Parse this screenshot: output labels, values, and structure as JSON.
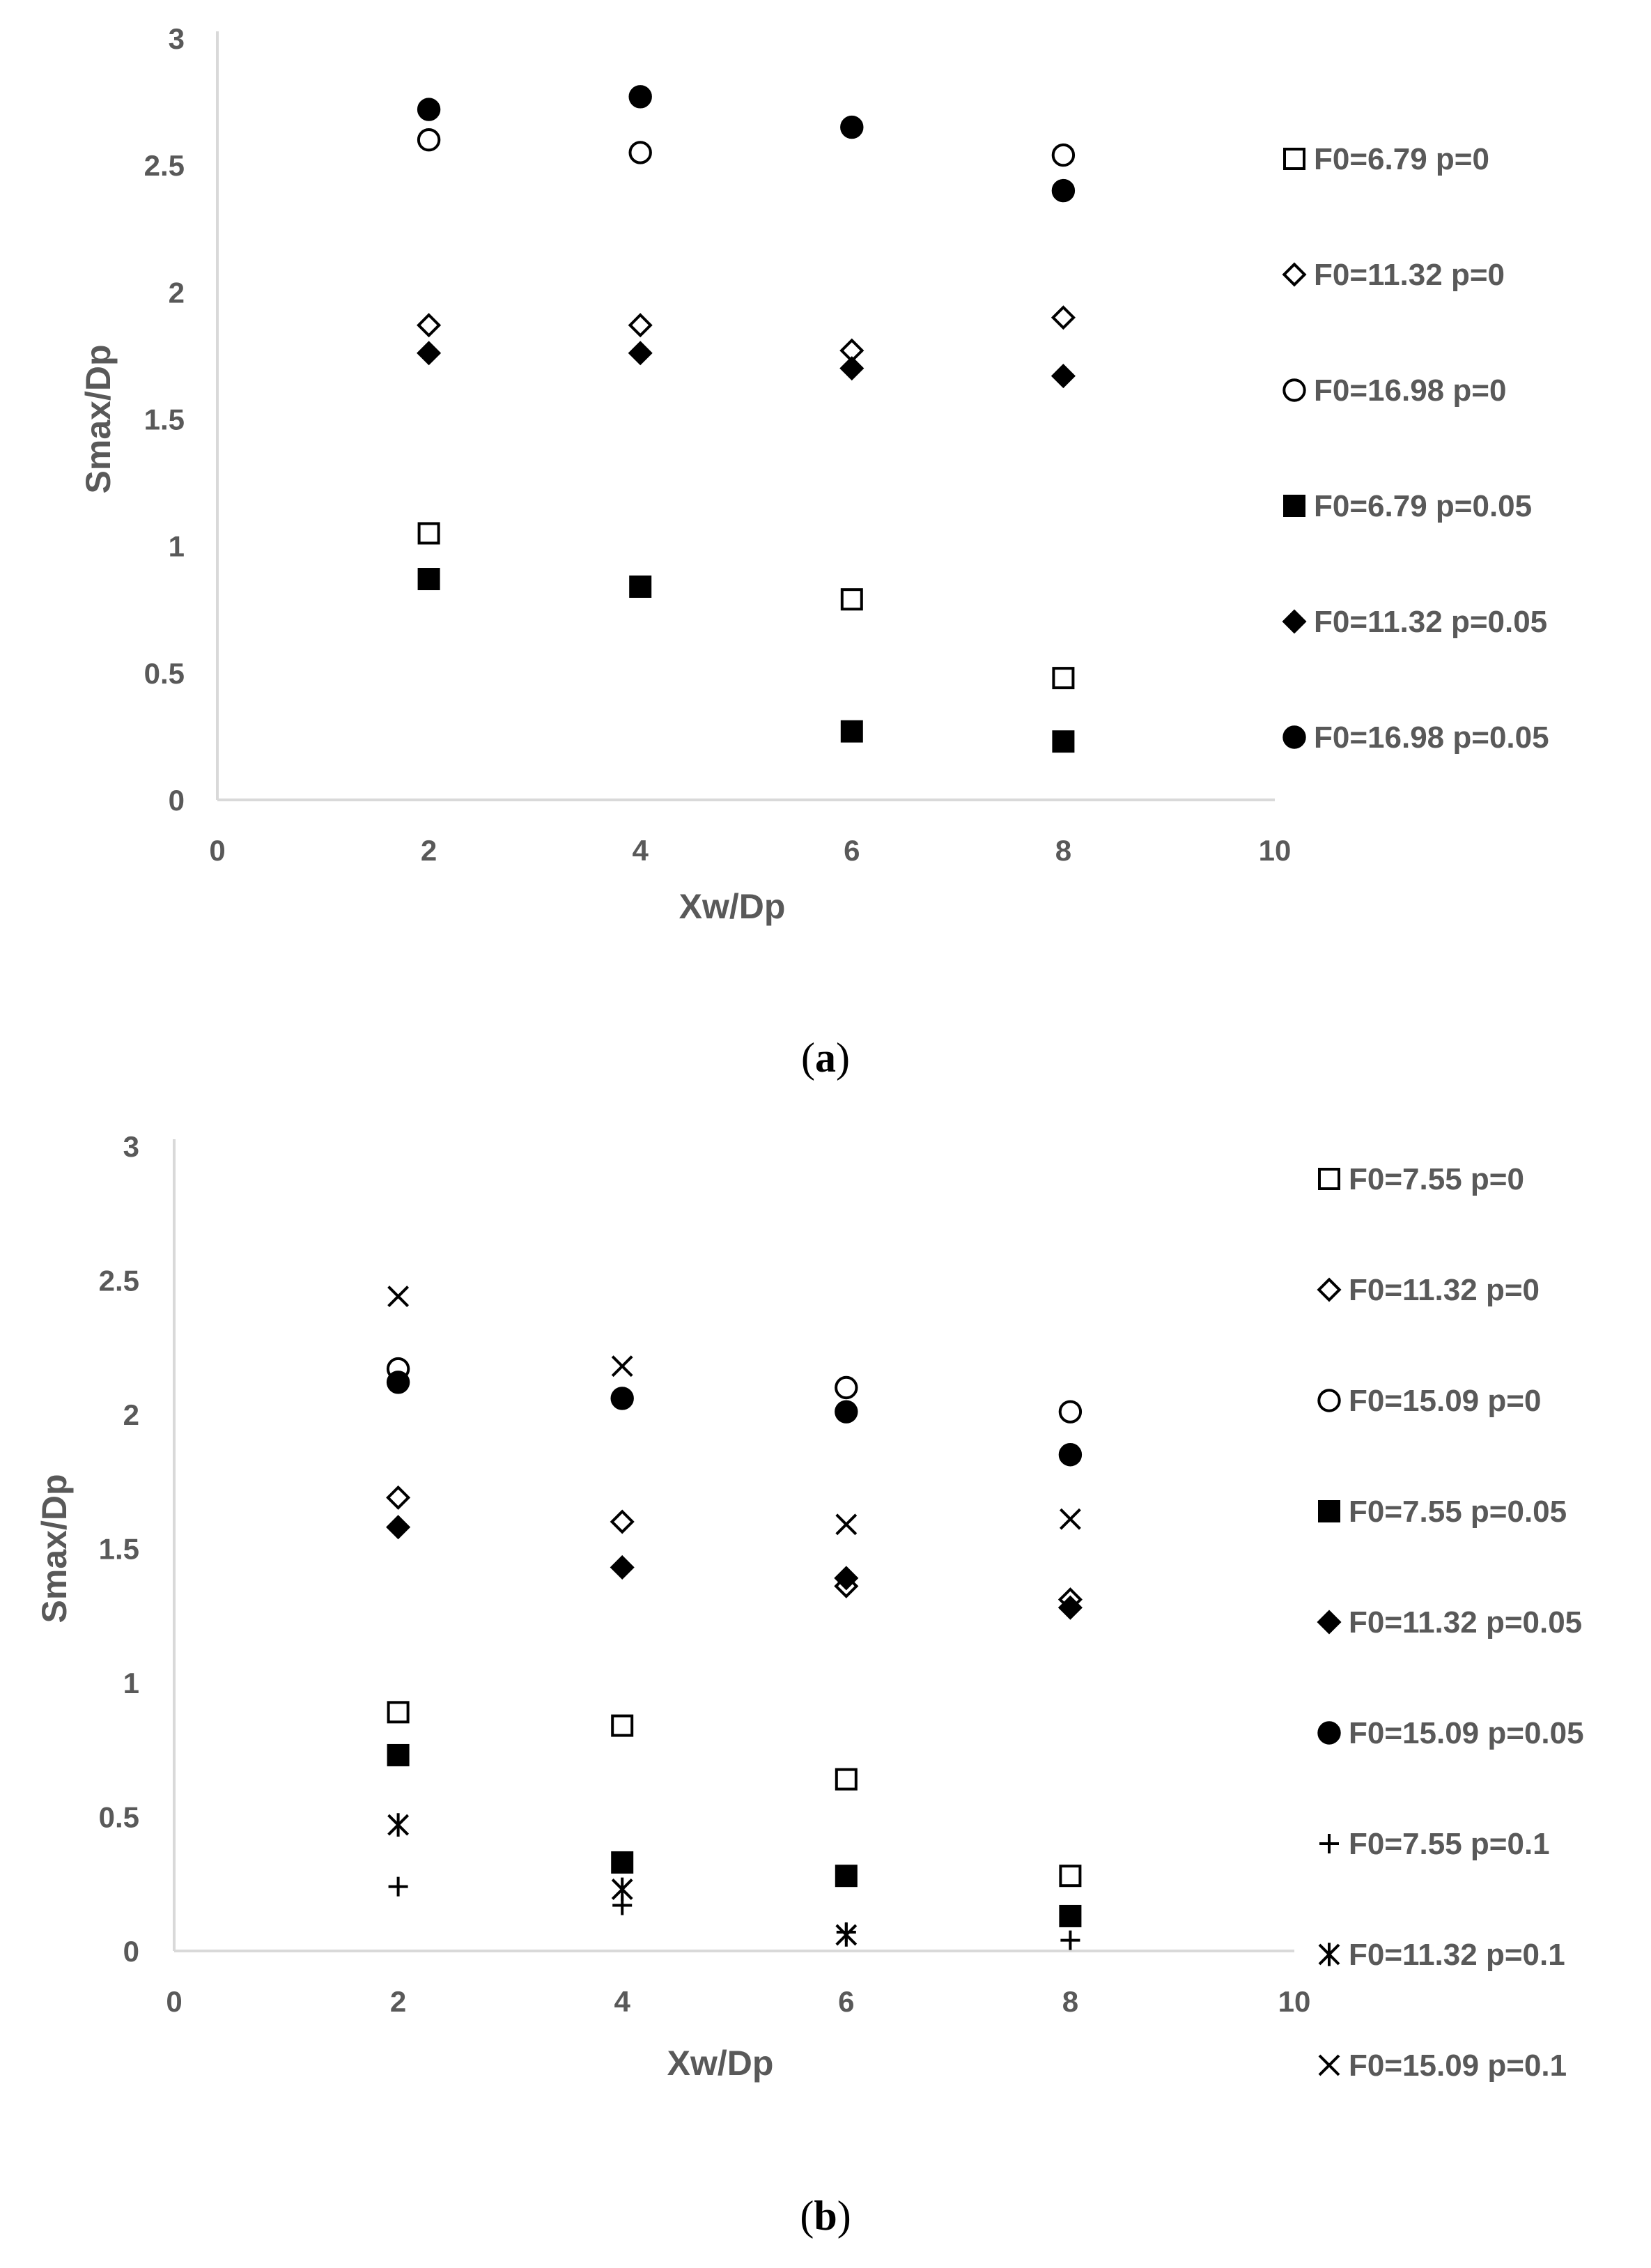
{
  "chart_data": [
    {
      "type": "scatter",
      "panel": "a",
      "caption": "(a)",
      "caption_letter": "a",
      "xlabel": "Xw/Dp",
      "ylabel": "Smax/Dp",
      "xlim": [
        0,
        10
      ],
      "ylim": [
        0,
        3
      ],
      "xticks": [
        "0",
        "2",
        "4",
        "6",
        "8",
        "10"
      ],
      "yticks": [
        "0",
        "0.5",
        "1",
        "1.5",
        "2",
        "2.5",
        "3"
      ],
      "legend_position": "right",
      "series": [
        {
          "name": "F0=6.79 p=0",
          "marker": "square-open",
          "x": [
            2,
            6,
            8
          ],
          "y": [
            1.05,
            0.79,
            0.48
          ]
        },
        {
          "name": "F0=11.32 p=0",
          "marker": "diamond-open",
          "x": [
            2,
            4,
            6,
            8
          ],
          "y": [
            1.87,
            1.87,
            1.77,
            1.9
          ]
        },
        {
          "name": "F0=16.98 p=0",
          "marker": "circle-open",
          "x": [
            2,
            4,
            8
          ],
          "y": [
            2.6,
            2.55,
            2.54
          ]
        },
        {
          "name": "F0=6.79 p=0.05",
          "marker": "square-filled",
          "x": [
            2,
            4,
            6,
            8
          ],
          "y": [
            0.87,
            0.84,
            0.27,
            0.23
          ]
        },
        {
          "name": "F0=11.32 p=0.05",
          "marker": "diamond-filled",
          "x": [
            2,
            4,
            6,
            8
          ],
          "y": [
            1.76,
            1.76,
            1.7,
            1.67
          ]
        },
        {
          "name": "F0=16.98 p=0.05",
          "marker": "circle-filled",
          "x": [
            2,
            4,
            6,
            8
          ],
          "y": [
            2.72,
            2.77,
            2.65,
            2.4
          ]
        }
      ]
    },
    {
      "type": "scatter",
      "panel": "b",
      "caption": "(b)",
      "caption_letter": "b",
      "xlabel": "Xw/Dp",
      "ylabel": "Smax/Dp",
      "xlim": [
        0,
        10
      ],
      "ylim": [
        0,
        3
      ],
      "xticks": [
        "0",
        "2",
        "4",
        "6",
        "8",
        "10"
      ],
      "yticks": [
        "0",
        "0.5",
        "1",
        "1.5",
        "2",
        "2.5",
        "3"
      ],
      "legend_position": "right",
      "series": [
        {
          "name": "F0=7.55 p=0",
          "marker": "square-open",
          "x": [
            2,
            4,
            6,
            8
          ],
          "y": [
            0.89,
            0.84,
            0.64,
            0.28
          ]
        },
        {
          "name": "F0=11.32 p=0",
          "marker": "diamond-open",
          "x": [
            2,
            4,
            6,
            8
          ],
          "y": [
            1.69,
            1.6,
            1.36,
            1.31
          ]
        },
        {
          "name": "F0=15.09 p=0",
          "marker": "circle-open",
          "x": [
            2,
            6,
            8
          ],
          "y": [
            2.17,
            2.1,
            2.01
          ]
        },
        {
          "name": "F0=7.55 p=0.05",
          "marker": "square-filled",
          "x": [
            2,
            4,
            6,
            8
          ],
          "y": [
            0.73,
            0.33,
            0.28,
            0.13
          ]
        },
        {
          "name": "F0=11.32 p=0.05",
          "marker": "diamond-filled",
          "x": [
            2,
            4,
            6,
            8
          ],
          "y": [
            1.58,
            1.43,
            1.39,
            1.28
          ]
        },
        {
          "name": "F0=15.09 p=0.05",
          "marker": "circle-filled",
          "x": [
            2,
            4,
            6,
            8
          ],
          "y": [
            2.12,
            2.06,
            2.01,
            1.85
          ]
        },
        {
          "name": "F0=7.55 p=0.1",
          "marker": "plus",
          "x": [
            2,
            4,
            6,
            8
          ],
          "y": [
            0.24,
            0.17,
            0.07,
            0.04
          ]
        },
        {
          "name": "F0=11.32 p=0.1",
          "marker": "asterisk",
          "x": [
            2,
            4,
            6
          ],
          "y": [
            0.47,
            0.23,
            0.06
          ]
        },
        {
          "name": "F0=15.09 p=0.1",
          "marker": "cross",
          "x": [
            2,
            4,
            6,
            8
          ],
          "y": [
            2.44,
            2.18,
            1.59,
            1.61
          ]
        }
      ]
    }
  ]
}
